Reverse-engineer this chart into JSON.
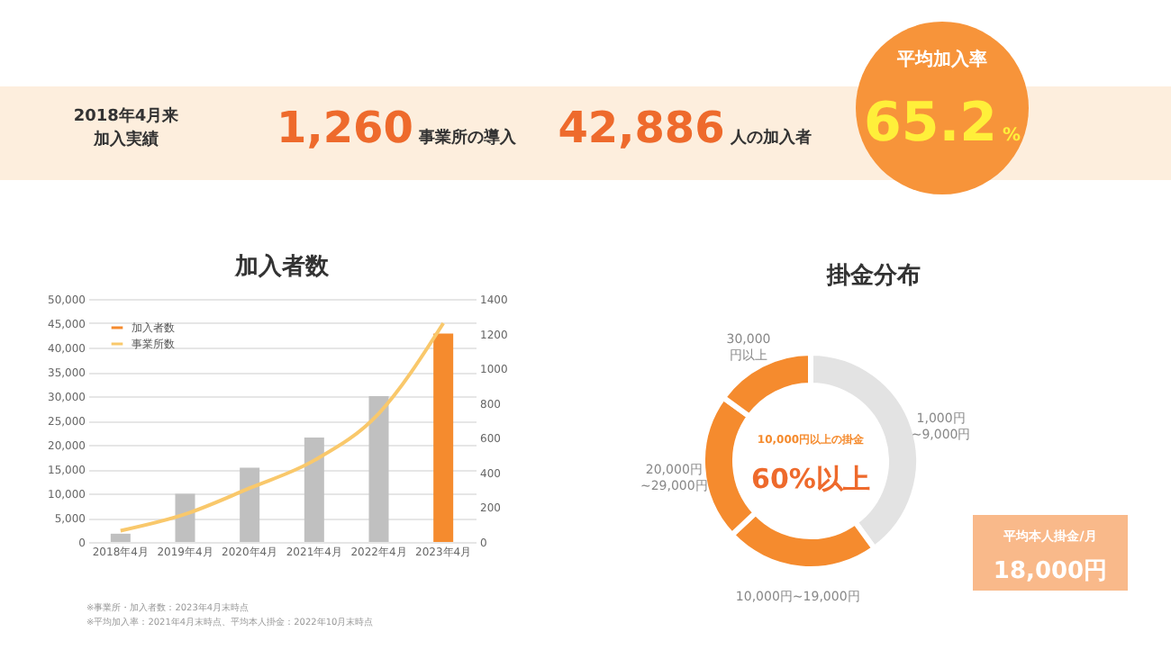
{
  "chart_data": [
    {
      "type": "other",
      "annotations": [
        "2018年4月来",
        "加入実績",
        "1,260",
        "事業所の導入",
        "42,886",
        "人の加入者",
        "平均加入率",
        "65.2",
        "%"
      ]
    },
    {
      "type": "bar",
      "title": "加入者数",
      "categories": [
        "2018年4月",
        "2019年4月",
        "2020年4月",
        "2021年4月",
        "2022年4月",
        "2023年4月"
      ],
      "series": [
        {
          "name": "加入者数",
          "color": "#f58b2e",
          "colors": [
            "#c0c0c0",
            "#c0c0c0",
            "#c0c0c0",
            "#c0c0c0",
            "#c0c0c0",
            "#f58b2e"
          ],
          "values": [
            1700,
            9900,
            15300,
            21500,
            30000,
            42886
          ]
        },
        {
          "name": "事業所数",
          "type": "line",
          "axis": "y2",
          "color": "#f9c86b",
          "values": [
            65,
            160,
            310,
            470,
            740,
            1260
          ]
        }
      ],
      "ylim": [
        0,
        50000
      ],
      "yticks": [
        0,
        {
          "value": 5000,
          "label": "5,000"
        },
        {
          "value": 10000,
          "label": "10,000"
        },
        {
          "value": 15000,
          "label": "15,000"
        },
        {
          "value": 20000,
          "label": "20,000"
        },
        {
          "value": 25000,
          "label": "25,000"
        },
        {
          "value": 30000,
          "label": "30,000"
        },
        {
          "value": 35000,
          "label": "35,000"
        },
        {
          "value": 40000,
          "label": "40,000"
        },
        {
          "value": 45000,
          "label": "45,000"
        },
        {
          "value": 50000,
          "label": "50,000"
        }
      ],
      "y2lim": [
        0,
        1400
      ],
      "y2ticks": [
        0,
        200,
        400,
        600,
        800,
        1000,
        1200,
        1400
      ],
      "grid": "y",
      "legend": "top left",
      "annotations": [
        "※事業所・加入者数：2023年4月末時点",
        "※平均加入率：2021年4月末時点、平均本人掛金：2022年10月末時点"
      ]
    },
    {
      "type": "donut",
      "title": "掛金分布",
      "categories": [
        "1,000円\n~9,000円",
        "10,000円~19,000円",
        "20,000円\n~29,000円",
        "30,000\n円以上"
      ],
      "values": [
        40,
        23,
        22,
        15
      ],
      "colors": [
        "#e3e3e3",
        "#f58b2e",
        "#f58b2e",
        "#f58b2e"
      ],
      "annotations": [
        "10,000円以上の掛金",
        "60%以上",
        "平均本人掛金/月",
        "18,000円"
      ]
    }
  ]
}
